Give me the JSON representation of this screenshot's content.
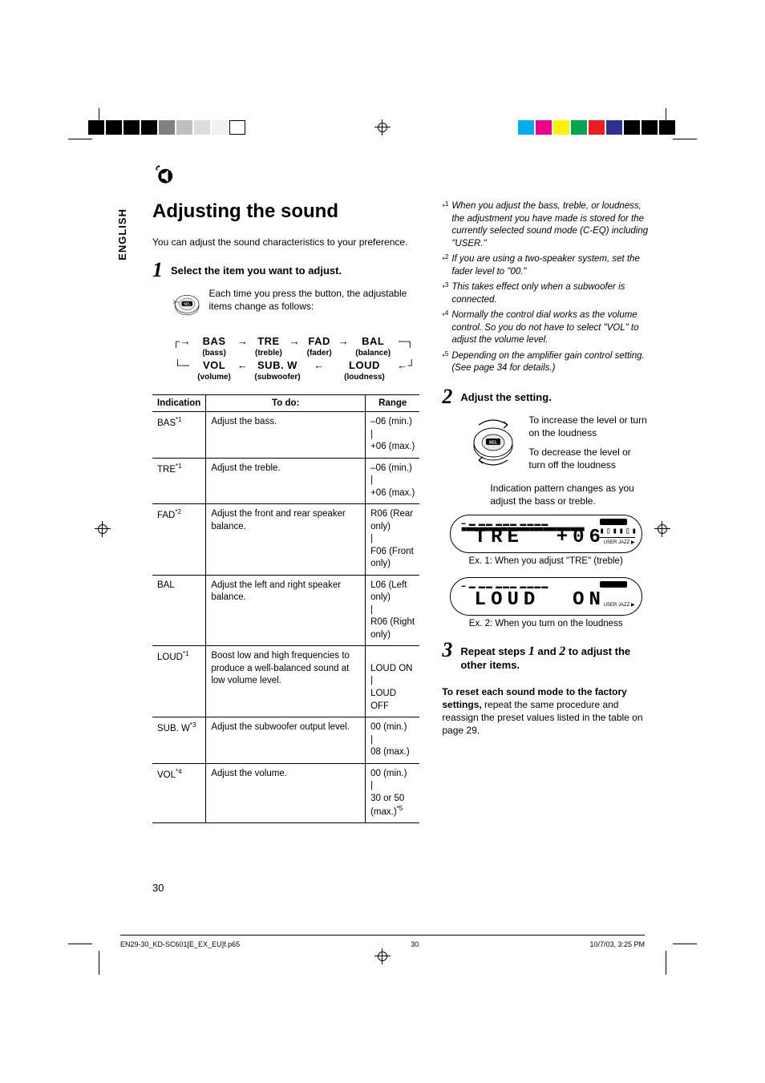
{
  "reg_colors_left": [
    "#000000",
    "#000000",
    "#000000",
    "#000000",
    "#808080",
    "#bfbfbf",
    "#dcdcdc",
    "#f0f0f0",
    "#ffffff"
  ],
  "reg_colors_right": [
    "#00aeef",
    "#ec008c",
    "#fff200",
    "#00a651",
    "#ed1c24",
    "#2e3192",
    "#000000",
    "#000000",
    "#000000"
  ],
  "lang_tab": "ENGLISH",
  "title": "Adjusting the sound",
  "intro": "You can adjust the sound characteristics to your preference.",
  "steps": {
    "s1": {
      "num": "1",
      "head": "Select the item you want to adjust.",
      "press": "Each time you press the button, the adjustable items change as follows:"
    },
    "s2": {
      "num": "2",
      "head": "Adjust the setting.",
      "inc": "To increase the level or turn on the loudness",
      "dec": "To decrease the level or turn off the loudness",
      "pattern": "Indication pattern changes as you adjust the bass or treble."
    },
    "s3": {
      "num": "3",
      "head_a": "Repeat steps ",
      "head_b": " and ",
      "head_c": " to adjust the other items.",
      "n1": "1",
      "n2": "2"
    }
  },
  "flow": {
    "items": [
      "BAS",
      "TRE",
      "FAD",
      "BAL",
      "VOL",
      "SUB. W",
      "LOUD"
    ],
    "subs": [
      "(bass)",
      "(treble)",
      "(fader)",
      "(balance)",
      "(volume)",
      "(subwoofer)",
      "(loudness)"
    ]
  },
  "table": {
    "headers": [
      "Indication",
      "To do:",
      "Range"
    ],
    "rows": [
      {
        "ind": "BAS",
        "sup": "*1",
        "todo": "Adjust the bass.",
        "range": "–06 (min.)\n|\n+06 (max.)"
      },
      {
        "ind": "TRE",
        "sup": "*1",
        "todo": "Adjust the treble.",
        "range": "–06 (min.)\n|\n+06 (max.)"
      },
      {
        "ind": "FAD",
        "sup": "*2",
        "todo": "Adjust the front and rear speaker balance.",
        "range": "R06 (Rear only)\n|\nF06 (Front only)"
      },
      {
        "ind": "BAL",
        "sup": "",
        "todo": "Adjust the left and right speaker balance.",
        "range": "L06 (Left only)\n|\nR06 (Right only)"
      },
      {
        "ind": "LOUD",
        "sup": "*1",
        "todo": "Boost low and high frequencies to produce a well-balanced sound at low volume level.",
        "range": "\nLOUD ON\n|\nLOUD OFF"
      },
      {
        "ind": "SUB. W",
        "sup": "*3",
        "todo": "Adjust the subwoofer output level.",
        "range": "00 (min.)\n|\n08 (max.)"
      },
      {
        "ind": "VOL",
        "sup": "*4",
        "todo": "Adjust the volume.",
        "range": "00 (min.)\n|\n30 or 50 (max.)*5"
      }
    ]
  },
  "footnotes": [
    {
      "n": "*1",
      "t": "When you adjust the bass, treble, or loudness, the adjustment you have made is stored for the currently selected sound mode (C-EQ) including \"USER.\""
    },
    {
      "n": "*2",
      "t": "If you are using a two-speaker system, set the fader level to \"00.\""
    },
    {
      "n": "*3",
      "t": "This takes effect only when a subwoofer is connected."
    },
    {
      "n": "*4",
      "t": "Normally the control dial works as the volume control. So you do not have to select \"VOL\" to adjust the volume level."
    },
    {
      "n": "*5",
      "t": "Depending on the amplifier gain control setting. (See page 34 for details.)"
    }
  ],
  "lcd": {
    "ex1_label": "Ex. 1:  When you adjust \"TRE\" (treble)",
    "ex1_text1": "TRE",
    "ex1_text2": "+06",
    "ex2_label": "Ex. 2:  When you turn on the loudness",
    "ex2_text1": "LOUD",
    "ex2_text2": "ON"
  },
  "reset": {
    "bold": "To reset each sound mode to the factory settings,",
    "rest": " repeat the same procedure and reassign the preset values listed in the table on page 29."
  },
  "page_num": "30",
  "footer": {
    "file": "EN29-30_KD-SC601[E_EX_EU]f.p65",
    "pg": "30",
    "ts": "10/7/03, 3:25 PM"
  }
}
